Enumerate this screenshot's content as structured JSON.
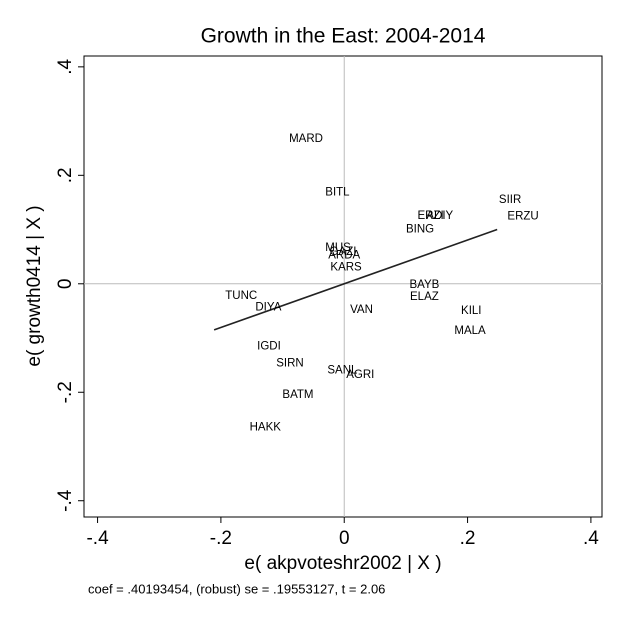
{
  "chart_data": {
    "type": "scatter",
    "title": "Growth in the East: 2004-2014",
    "xlabel": "e( akpvoteshr2002 | X )",
    "ylabel": "e( growth0414 | X )",
    "note": "coef = .40193454, (robust) se = .19553127, t = 2.06",
    "labels": [
      "MARD",
      "BITL",
      "SIIR",
      "ERZU",
      "ERZI",
      "ADIY",
      "BING",
      "MUS",
      "GAZI",
      "ARDA",
      "KARS",
      "BAYB",
      "ELAZ",
      "TUNC",
      "DIYA",
      "VAN",
      "KILI",
      "MALA",
      "IGDI",
      "SIRN",
      "SANL",
      "AGRI",
      "BATM",
      "HAKK"
    ],
    "x": [
      -0.062,
      -0.011,
      0.269,
      0.29,
      0.14,
      0.155,
      0.123,
      -0.01,
      -0.002,
      0,
      0.003,
      0.13,
      0.13,
      -0.167,
      -0.123,
      0.028,
      0.206,
      0.204,
      -0.122,
      -0.088,
      -0.003,
      0.026,
      -0.075,
      -0.128
    ],
    "y": [
      0.267,
      0.168,
      0.155,
      0.124,
      0.125,
      0.125,
      0.1,
      0.066,
      0.059,
      0.052,
      0.03,
      -0.002,
      -0.024,
      -0.022,
      -0.044,
      -0.048,
      -0.05,
      -0.087,
      -0.116,
      -0.147,
      -0.16,
      -0.168,
      -0.205,
      -0.265
    ],
    "fit": {
      "x": [
        -0.211,
        0.248
      ],
      "y": [
        -0.085,
        0.1
      ]
    },
    "xlim": [
      -0.422,
      0.418
    ],
    "ylim": [
      -0.43,
      0.42
    ],
    "xticks": [
      {
        "value": -0.4,
        "label": "-.4"
      },
      {
        "value": -0.2,
        "label": "-.2"
      },
      {
        "value": 0,
        "label": "0"
      },
      {
        "value": 0.2,
        "label": ".2"
      },
      {
        "value": 0.4,
        "label": ".4"
      }
    ],
    "yticks": [
      {
        "value": -0.4,
        "label": "-.4"
      },
      {
        "value": -0.2,
        "label": "-.2"
      },
      {
        "value": 0,
        "label": "0"
      },
      {
        "value": 0.2,
        "label": ".2"
      },
      {
        "value": 0.4,
        "label": ".4"
      }
    ],
    "reference_lines": true
  }
}
